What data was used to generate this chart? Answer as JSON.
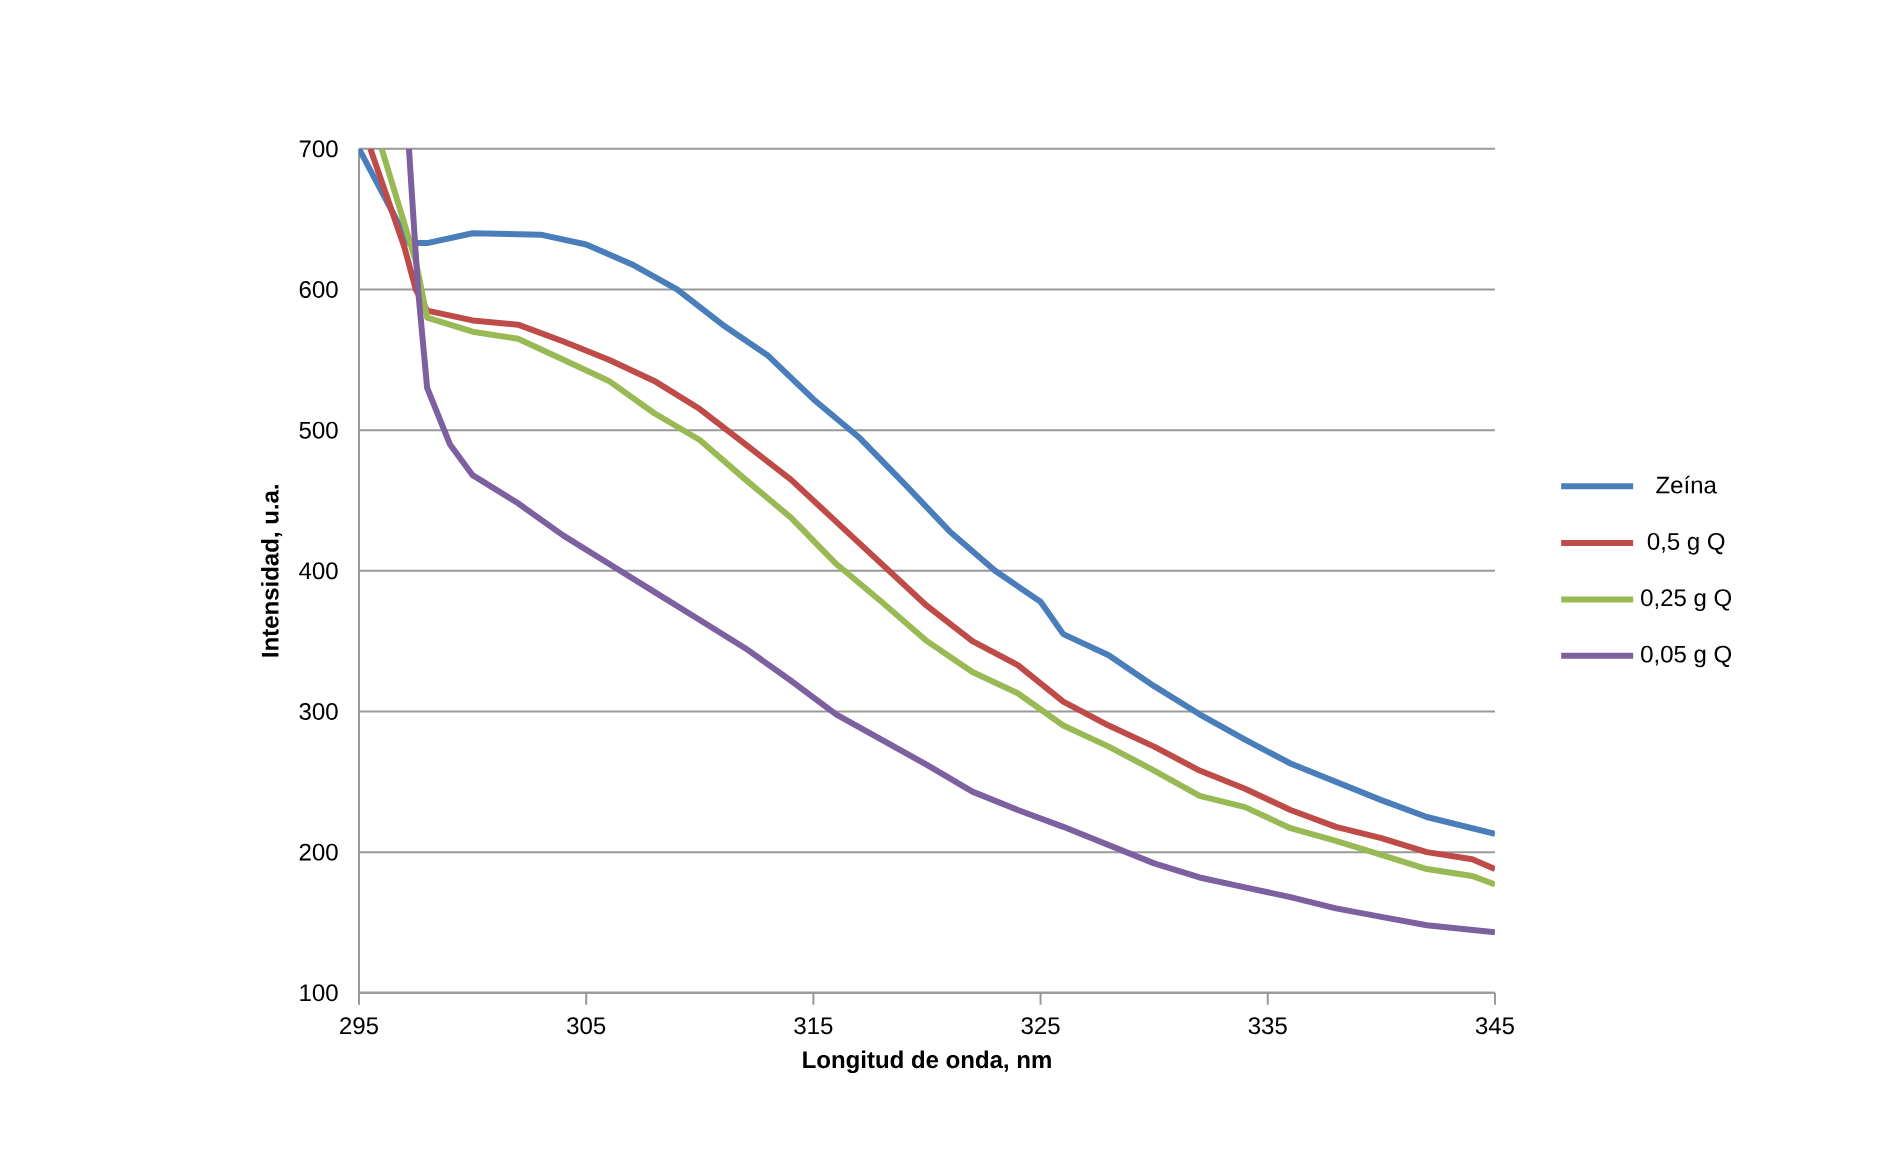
{
  "chart_data": {
    "type": "line",
    "xlabel": "Longitud de onda, nm",
    "ylabel": "Intensidad, u.a.",
    "xlim": [
      295,
      345
    ],
    "xticks": [
      295,
      305,
      315,
      325,
      335,
      345
    ],
    "ylim": [
      100,
      700
    ],
    "yticks": [
      100,
      200,
      300,
      400,
      500,
      600,
      700
    ],
    "grid": "y",
    "legend": "right",
    "line_style": "solid",
    "marker": "none",
    "series": [
      {
        "name": "Zeína",
        "color": "#4a7ebb",
        "x": [
          295,
          297.2,
          298,
          300,
          303,
          305,
          307,
          309,
          311,
          313,
          315,
          317,
          319,
          321,
          323,
          325,
          326,
          328,
          330,
          332,
          334,
          336,
          338,
          340,
          342,
          345
        ],
        "values": [
          700,
          633,
          633,
          640,
          639,
          632,
          618,
          600,
          575,
          553,
          522,
          495,
          462,
          428,
          400,
          378,
          355,
          340,
          318,
          298,
          280,
          263,
          250,
          237,
          225,
          213
        ]
      },
      {
        "name": "0,5 g Q",
        "color": "#be4b48",
        "x": [
          295.5,
          297,
          297.5,
          298,
          300,
          302,
          304,
          306,
          308,
          310,
          312,
          314,
          316,
          318,
          320,
          322,
          324,
          326,
          328,
          330,
          332,
          334,
          336,
          338,
          340,
          342,
          344,
          345
        ],
        "values": [
          700,
          630,
          600,
          585,
          578,
          575,
          563,
          550,
          535,
          515,
          490,
          465,
          435,
          405,
          375,
          350,
          333,
          307,
          290,
          275,
          258,
          245,
          230,
          218,
          210,
          200,
          195,
          188
        ]
      },
      {
        "name": "0,25 g Q",
        "color": "#98b954",
        "x": [
          296,
          297.5,
          298,
          300,
          302,
          304,
          306,
          308,
          310,
          312,
          314,
          316,
          318,
          320,
          322,
          324,
          326,
          328,
          330,
          332,
          334,
          336,
          338,
          340,
          342,
          344,
          345
        ],
        "values": [
          700,
          620,
          580,
          570,
          565,
          550,
          535,
          512,
          493,
          465,
          438,
          405,
          378,
          350,
          328,
          313,
          290,
          275,
          258,
          240,
          232,
          217,
          208,
          198,
          188,
          183,
          177
        ]
      },
      {
        "name": "0,05 g Q",
        "color": "#7d60a0",
        "x": [
          297.2,
          297.6,
          298,
          299,
          300,
          302,
          304,
          306,
          308,
          310,
          312,
          314,
          316,
          318,
          320,
          322,
          324,
          326,
          328,
          330,
          332,
          334,
          336,
          338,
          340,
          342,
          345
        ],
        "values": [
          700,
          600,
          530,
          490,
          468,
          448,
          425,
          405,
          385,
          365,
          345,
          322,
          298,
          280,
          262,
          243,
          230,
          218,
          205,
          192,
          182,
          175,
          168,
          160,
          154,
          148,
          143
        ]
      }
    ]
  }
}
